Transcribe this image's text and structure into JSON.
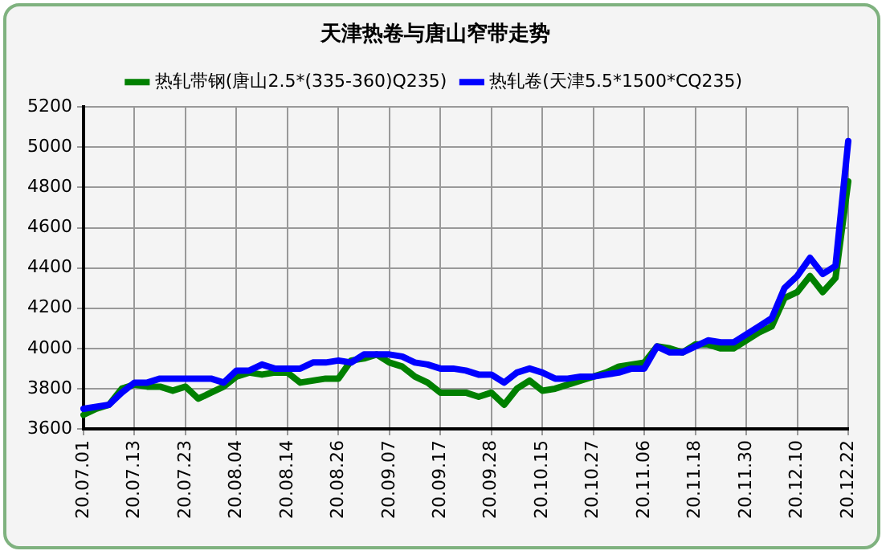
{
  "chart_data": {
    "type": "line",
    "title": "天津热卷与唐山窄带走势",
    "categories": [
      "20.07.01",
      null,
      null,
      null,
      "20.07.13",
      null,
      null,
      null,
      "20.07.23",
      null,
      null,
      null,
      "20.08.04",
      null,
      null,
      null,
      "20.08.14",
      null,
      null,
      null,
      "20.08.26",
      null,
      null,
      null,
      "20.09.07",
      null,
      null,
      null,
      "20.09.17",
      null,
      null,
      null,
      "20.09.28",
      null,
      null,
      null,
      "20.10.15",
      null,
      null,
      null,
      "20.10.27",
      null,
      null,
      null,
      "20.11.06",
      null,
      null,
      null,
      "20.11.18",
      null,
      null,
      null,
      "20.11.30",
      null,
      null,
      null,
      "20.12.10",
      null,
      null,
      null,
      "20.12.22"
    ],
    "series": [
      {
        "name": "热轧带钢(唐山2.5*(335-360)Q235)",
        "color": "#008000",
        "values": [
          3670,
          3700,
          3720,
          3800,
          3820,
          3810,
          3810,
          3790,
          3810,
          3750,
          3780,
          3810,
          3860,
          3880,
          3870,
          3880,
          3880,
          3830,
          3840,
          3850,
          3850,
          3940,
          3950,
          3970,
          3930,
          3910,
          3860,
          3830,
          3780,
          3780,
          3780,
          3760,
          3780,
          3720,
          3800,
          3840,
          3790,
          3800,
          3820,
          3840,
          3860,
          3880,
          3910,
          3920,
          3930,
          4010,
          4000,
          3980,
          4020,
          4020,
          4000,
          4000,
          4040,
          4080,
          4110,
          4250,
          4280,
          4360,
          4280,
          4350,
          4830
        ]
      },
      {
        "name": "热轧卷(天津5.5*1500*CQ235)",
        "color": "#0000ff",
        "values": [
          3700,
          3710,
          3720,
          3780,
          3830,
          3830,
          3850,
          3850,
          3850,
          3850,
          3850,
          3830,
          3890,
          3890,
          3920,
          3900,
          3900,
          3900,
          3930,
          3930,
          3940,
          3930,
          3970,
          3970,
          3970,
          3960,
          3930,
          3920,
          3900,
          3900,
          3890,
          3870,
          3870,
          3830,
          3880,
          3900,
          3880,
          3850,
          3850,
          3860,
          3860,
          3870,
          3880,
          3900,
          3900,
          4010,
          3980,
          3980,
          4010,
          4040,
          4030,
          4030,
          4070,
          4110,
          4150,
          4300,
          4360,
          4450,
          4370,
          4410,
          5030
        ]
      }
    ],
    "ylim": [
      3600,
      5200
    ],
    "yticks": [
      3600,
      3800,
      4000,
      4200,
      4400,
      4600,
      4800,
      5000,
      5200
    ],
    "grid": true,
    "legend": "top",
    "marker": "none",
    "line_style": "solid"
  }
}
